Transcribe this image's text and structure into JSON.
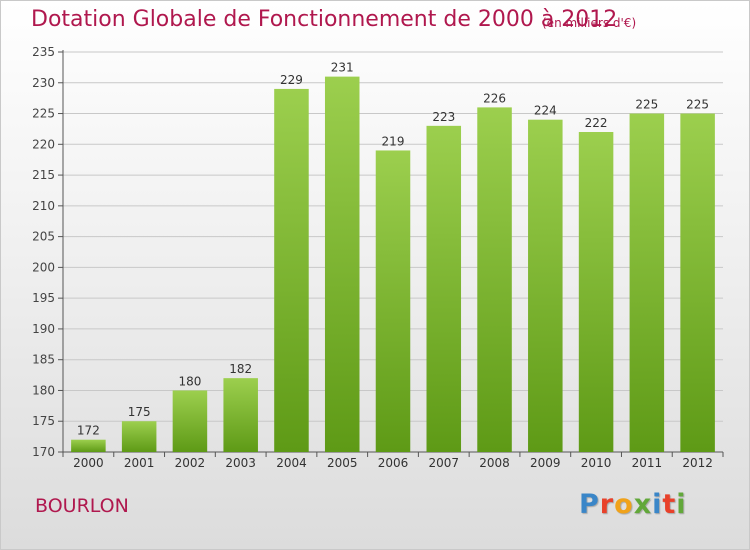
{
  "header": {
    "title": "Dotation Globale de Fonctionnement de 2000 à 2012",
    "subtitle": "(en milliers d'€)"
  },
  "footer": {
    "commune": "BOURLON",
    "logo_letters": [
      "P",
      "r",
      "o",
      "x",
      "i",
      "t",
      "i"
    ]
  },
  "colors": {
    "title": "#b0184e",
    "bar_top": "#9ccf4e",
    "bar_bottom": "#5e9a16",
    "axis": "#555555",
    "grid": "#c8c8c8"
  },
  "chart_data": {
    "type": "bar",
    "title": "Dotation Globale de Fonctionnement de 2000 à 2012",
    "subtitle": "(en milliers d'€)",
    "xlabel": "",
    "ylabel": "",
    "categories": [
      "2000",
      "2001",
      "2002",
      "2003",
      "2004",
      "2005",
      "2006",
      "2007",
      "2008",
      "2009",
      "2010",
      "2011",
      "2012"
    ],
    "values": [
      172,
      175,
      180,
      182,
      229,
      231,
      219,
      223,
      226,
      224,
      222,
      225,
      225
    ],
    "data_labels": [
      "172",
      "175",
      "180",
      "182",
      "229",
      "231",
      "219",
      "223",
      "226",
      "224",
      "222",
      "225",
      "225"
    ],
    "ylim": [
      170,
      235
    ],
    "yticks": [
      170,
      175,
      180,
      185,
      190,
      195,
      200,
      205,
      210,
      215,
      220,
      225,
      230,
      235
    ],
    "grid": true,
    "legend": "none"
  }
}
